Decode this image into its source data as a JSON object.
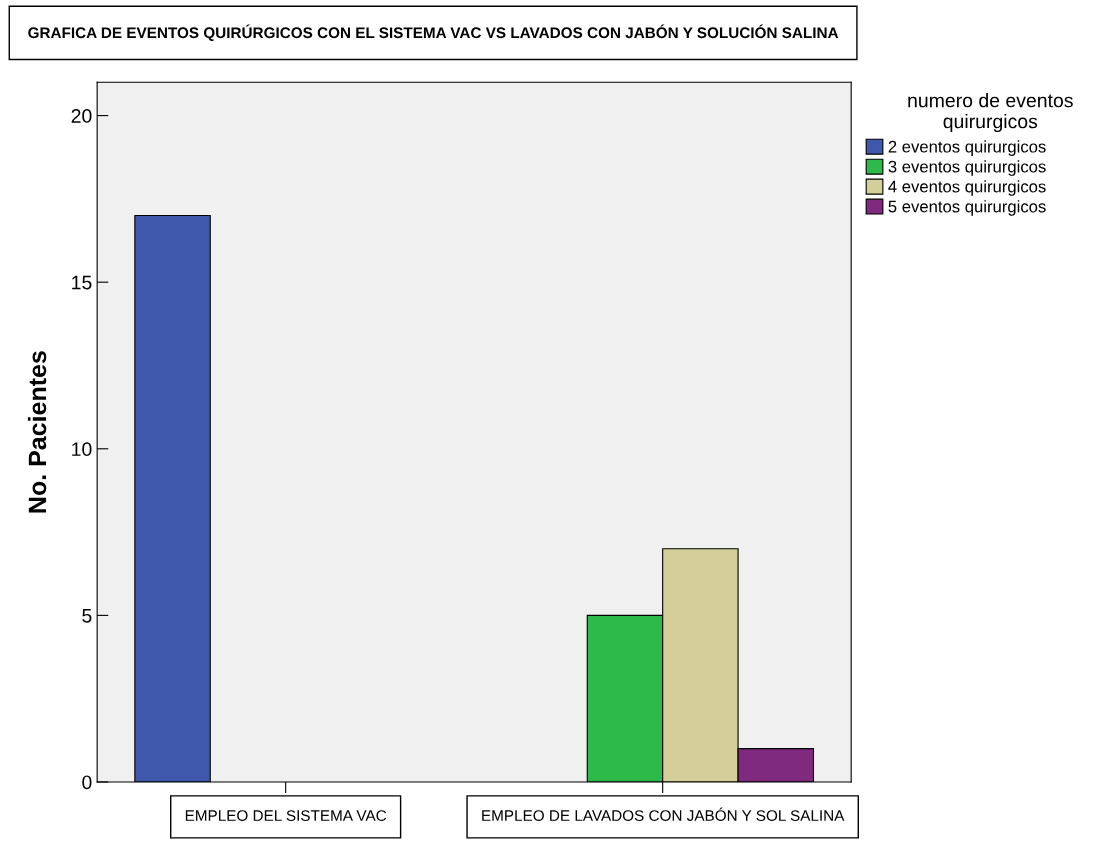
{
  "chart_data": {
    "type": "bar",
    "title": "GRAFICA DE EVENTOS QUIRÚRGICOS CON EL SISTEMA VAC VS LAVADOS CON JABÓN Y SOLUCIÓN SALINA",
    "ylabel": "No. Pacientes",
    "legend_title": "numero de eventos quirurgicos",
    "categories": [
      "EMPLEO DEL SISTEMA VAC",
      "EMPLEO DE LAVADOS CON JABÓN Y SOL SALINA"
    ],
    "series": [
      {
        "name": "2 eventos quirurgicos",
        "color": "#3f58ab",
        "values": [
          17,
          null
        ]
      },
      {
        "name": "3 eventos quirurgicos",
        "color": "#2db84a",
        "values": [
          null,
          5
        ]
      },
      {
        "name": "4 eventos quirurgicos",
        "color": "#d4cf99",
        "values": [
          null,
          7
        ]
      },
      {
        "name": "5 eventos quirurgicos",
        "color": "#7f2a7e",
        "values": [
          null,
          1
        ]
      }
    ],
    "ylim": [
      0,
      21
    ],
    "yticks": [
      0,
      5,
      10,
      15,
      20
    ],
    "grid": false,
    "legend": "top right"
  }
}
